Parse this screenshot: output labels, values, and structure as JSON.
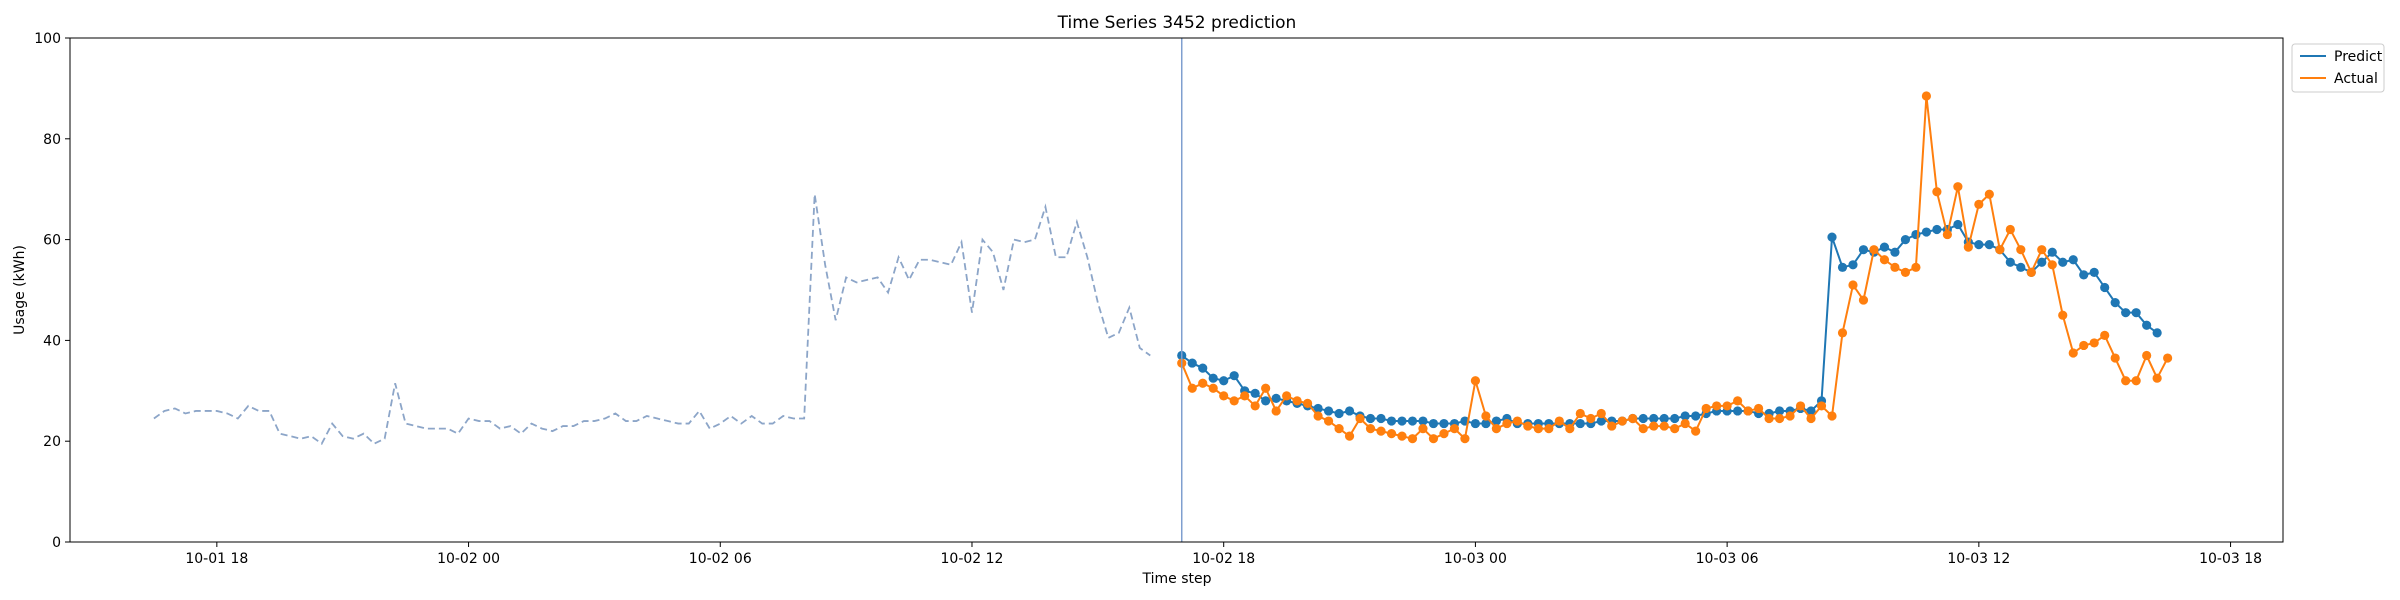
{
  "chart_data": {
    "type": "line",
    "title": "Time Series 3452 prediction",
    "xlabel": "Time step",
    "ylabel": "Usage (kWh)",
    "xlim": [
      "10-01 14:30",
      "10-03 19:15"
    ],
    "ylim": [
      0,
      100
    ],
    "yticks": [
      0,
      20,
      40,
      60,
      80,
      100
    ],
    "xticks": [
      {
        "label": "10-01 18",
        "value": "10-01 18:00"
      },
      {
        "label": "10-02 00",
        "value": "10-02 00:00"
      },
      {
        "label": "10-02 06",
        "value": "10-02 06:00"
      },
      {
        "label": "10-02 12",
        "value": "10-02 12:00"
      },
      {
        "label": "10-02 18",
        "value": "10-02 18:00"
      },
      {
        "label": "10-03 00",
        "value": "10-03 00:00"
      },
      {
        "label": "10-03 06",
        "value": "10-03 06:00"
      },
      {
        "label": "10-03 12",
        "value": "10-03 12:00"
      },
      {
        "label": "10-03 18",
        "value": "10-03 18:00"
      }
    ],
    "vline": {
      "x": "10-02 17:00",
      "color": "#7f9fcf"
    },
    "legend_position": "top-right",
    "grid": false,
    "series": [
      {
        "name": "Predict",
        "color": "#1f77b4",
        "style": "solid",
        "marker": true,
        "x": [
          "10-02 17:00",
          "10-02 17:15",
          "10-02 17:30",
          "10-02 17:45",
          "10-02 18:00",
          "10-02 18:15",
          "10-02 18:30",
          "10-02 18:45",
          "10-02 19:00",
          "10-02 19:15",
          "10-02 19:30",
          "10-02 19:45",
          "10-02 20:00",
          "10-02 20:15",
          "10-02 20:30",
          "10-02 20:45",
          "10-02 21:00",
          "10-02 21:15",
          "10-02 21:30",
          "10-02 21:45",
          "10-02 22:00",
          "10-02 22:15",
          "10-02 22:30",
          "10-02 22:45",
          "10-02 23:00",
          "10-02 23:15",
          "10-02 23:30",
          "10-02 23:45",
          "10-03 00:00",
          "10-03 00:15",
          "10-03 00:30",
          "10-03 00:45",
          "10-03 01:00",
          "10-03 01:15",
          "10-03 01:30",
          "10-03 01:45",
          "10-03 02:00",
          "10-03 02:15",
          "10-03 02:30",
          "10-03 02:45",
          "10-03 03:00",
          "10-03 03:15",
          "10-03 03:30",
          "10-03 03:45",
          "10-03 04:00",
          "10-03 04:15",
          "10-03 04:30",
          "10-03 04:45",
          "10-03 05:00",
          "10-03 05:15",
          "10-03 05:30",
          "10-03 05:45",
          "10-03 06:00",
          "10-03 06:15",
          "10-03 06:30",
          "10-03 06:45",
          "10-03 07:00",
          "10-03 07:15",
          "10-03 07:30",
          "10-03 07:45",
          "10-03 08:00",
          "10-03 08:15",
          "10-03 08:30",
          "10-03 08:45",
          "10-03 09:00",
          "10-03 09:15",
          "10-03 09:30",
          "10-03 09:45",
          "10-03 10:00",
          "10-03 10:15",
          "10-03 10:30",
          "10-03 10:45",
          "10-03 11:00",
          "10-03 11:15",
          "10-03 11:30",
          "10-03 11:45",
          "10-03 12:00",
          "10-03 12:15",
          "10-03 12:30",
          "10-03 12:45",
          "10-03 13:00",
          "10-03 13:15",
          "10-03 13:30",
          "10-03 13:45",
          "10-03 14:00",
          "10-03 14:15",
          "10-03 14:30",
          "10-03 14:45",
          "10-03 15:00",
          "10-03 15:15",
          "10-03 15:30",
          "10-03 15:45",
          "10-03 16:00",
          "10-03 16:15",
          "10-03 16:30",
          "10-03 16:45"
        ],
        "y": [
          37.0,
          35.5,
          34.5,
          32.5,
          32.0,
          33.0,
          30.0,
          29.5,
          28.0,
          28.5,
          28.0,
          27.5,
          27.0,
          26.5,
          26.0,
          25.5,
          26.0,
          25.0,
          24.5,
          24.5,
          24.0,
          24.0,
          24.0,
          24.0,
          23.5,
          23.5,
          23.5,
          24.0,
          23.5,
          23.5,
          24.0,
          24.5,
          23.5,
          23.5,
          23.5,
          23.5,
          23.5,
          23.5,
          23.5,
          23.5,
          24.0,
          24.0,
          24.0,
          24.5,
          24.5,
          24.5,
          24.5,
          24.5,
          25.0,
          25.0,
          25.5,
          26.0,
          26.0,
          26.0,
          26.0,
          25.5,
          25.5,
          26.0,
          26.0,
          26.5,
          26.0,
          28.0,
          60.5,
          54.5,
          55.0,
          58.0,
          57.5,
          58.5,
          57.5,
          60.0,
          61.0,
          61.5,
          62.0,
          62.0,
          63.0,
          59.5,
          59.0,
          59.0,
          58.0,
          55.5,
          54.5,
          53.5,
          55.5,
          57.5,
          55.5,
          56.0,
          53.0,
          53.5,
          50.5,
          47.5,
          45.5,
          45.5,
          43.0,
          41.5,
          null,
          null
        ]
      },
      {
        "name": "Actual",
        "color": "#ff7f0e",
        "style": "solid",
        "marker": true,
        "x": [
          "10-02 17:00",
          "10-02 17:15",
          "10-02 17:30",
          "10-02 17:45",
          "10-02 18:00",
          "10-02 18:15",
          "10-02 18:30",
          "10-02 18:45",
          "10-02 19:00",
          "10-02 19:15",
          "10-02 19:30",
          "10-02 19:45",
          "10-02 20:00",
          "10-02 20:15",
          "10-02 20:30",
          "10-02 20:45",
          "10-02 21:00",
          "10-02 21:15",
          "10-02 21:30",
          "10-02 21:45",
          "10-02 22:00",
          "10-02 22:15",
          "10-02 22:30",
          "10-02 22:45",
          "10-02 23:00",
          "10-02 23:15",
          "10-02 23:30",
          "10-02 23:45",
          "10-03 00:00",
          "10-03 00:15",
          "10-03 00:30",
          "10-03 00:45",
          "10-03 01:00",
          "10-03 01:15",
          "10-03 01:30",
          "10-03 01:45",
          "10-03 02:00",
          "10-03 02:15",
          "10-03 02:30",
          "10-03 02:45",
          "10-03 03:00",
          "10-03 03:15",
          "10-03 03:30",
          "10-03 03:45",
          "10-03 04:00",
          "10-03 04:15",
          "10-03 04:30",
          "10-03 04:45",
          "10-03 05:00",
          "10-03 05:15",
          "10-03 05:30",
          "10-03 05:45",
          "10-03 06:00",
          "10-03 06:15",
          "10-03 06:30",
          "10-03 06:45",
          "10-03 07:00",
          "10-03 07:15",
          "10-03 07:30",
          "10-03 07:45",
          "10-03 08:00",
          "10-03 08:15",
          "10-03 08:30",
          "10-03 08:45",
          "10-03 09:00",
          "10-03 09:15",
          "10-03 09:30",
          "10-03 09:45",
          "10-03 10:00",
          "10-03 10:15",
          "10-03 10:30",
          "10-03 10:45",
          "10-03 11:00",
          "10-03 11:15",
          "10-03 11:30",
          "10-03 11:45",
          "10-03 12:00",
          "10-03 12:15",
          "10-03 12:30",
          "10-03 12:45",
          "10-03 13:00",
          "10-03 13:15",
          "10-03 13:30",
          "10-03 13:45",
          "10-03 14:00",
          "10-03 14:15",
          "10-03 14:30",
          "10-03 14:45",
          "10-03 15:00",
          "10-03 15:15",
          "10-03 15:30",
          "10-03 15:45",
          "10-03 16:00",
          "10-03 16:15",
          "10-03 16:30",
          "10-03 16:45"
        ],
        "y": [
          35.5,
          30.5,
          31.5,
          30.5,
          29.0,
          28.0,
          29.0,
          27.0,
          30.5,
          26.0,
          29.0,
          28.0,
          27.5,
          25.0,
          24.0,
          22.5,
          21.0,
          24.5,
          22.5,
          22.0,
          21.5,
          21.0,
          20.5,
          22.5,
          20.5,
          21.5,
          22.5,
          20.5,
          32.0,
          25.0,
          22.5,
          23.5,
          24.0,
          23.0,
          22.5,
          22.5,
          24.0,
          22.5,
          25.5,
          24.5,
          25.5,
          23.0,
          24.0,
          24.5,
          22.5,
          23.0,
          23.0,
          22.5,
          23.5,
          22.0,
          26.5,
          27.0,
          27.0,
          28.0,
          26.0,
          26.5,
          24.5,
          24.5,
          25.0,
          27.0,
          24.5,
          27.0,
          25.0,
          41.5,
          51.0,
          48.0,
          58.0,
          56.0,
          54.5,
          53.5,
          54.5,
          88.5,
          69.5,
          61.0,
          70.5,
          58.5,
          67.0,
          69.0,
          58.0,
          62.0,
          58.0,
          53.5,
          58.0,
          55.0,
          45.0,
          37.5,
          39.0,
          39.5,
          41.0,
          36.5,
          32.0,
          32.0,
          37.0,
          32.5,
          36.5,
          null
        ]
      },
      {
        "name": "",
        "color": "#8ca5c8",
        "style": "dashed",
        "marker": false,
        "x": [
          "10-01 16:30",
          "10-01 16:45",
          "10-01 17:00",
          "10-01 17:15",
          "10-01 17:30",
          "10-01 17:45",
          "10-01 18:00",
          "10-01 18:15",
          "10-01 18:30",
          "10-01 18:45",
          "10-01 19:00",
          "10-01 19:15",
          "10-01 19:30",
          "10-01 19:45",
          "10-01 20:00",
          "10-01 20:15",
          "10-01 20:30",
          "10-01 20:45",
          "10-01 21:00",
          "10-01 21:15",
          "10-01 21:30",
          "10-01 21:45",
          "10-01 22:00",
          "10-01 22:15",
          "10-01 22:30",
          "10-01 22:45",
          "10-01 23:00",
          "10-01 23:15",
          "10-01 23:30",
          "10-01 23:45",
          "10-02 00:00",
          "10-02 00:15",
          "10-02 00:30",
          "10-02 00:45",
          "10-02 01:00",
          "10-02 01:15",
          "10-02 01:30",
          "10-02 01:45",
          "10-02 02:00",
          "10-02 02:15",
          "10-02 02:30",
          "10-02 02:45",
          "10-02 03:00",
          "10-02 03:15",
          "10-02 03:30",
          "10-02 03:45",
          "10-02 04:00",
          "10-02 04:15",
          "10-02 04:30",
          "10-02 04:45",
          "10-02 05:00",
          "10-02 05:15",
          "10-02 05:30",
          "10-02 05:45",
          "10-02 06:00",
          "10-02 06:15",
          "10-02 06:30",
          "10-02 06:45",
          "10-02 07:00",
          "10-02 07:15",
          "10-02 07:30",
          "10-02 07:45",
          "10-02 08:00",
          "10-02 08:15",
          "10-02 08:30",
          "10-02 08:45",
          "10-02 09:00",
          "10-02 09:15",
          "10-02 09:30",
          "10-02 09:45",
          "10-02 10:00",
          "10-02 10:15",
          "10-02 10:30",
          "10-02 10:45",
          "10-02 11:00",
          "10-02 11:15",
          "10-02 11:30",
          "10-02 11:45",
          "10-02 12:00",
          "10-02 12:15",
          "10-02 12:30",
          "10-02 12:45",
          "10-02 13:00",
          "10-02 13:15",
          "10-02 13:30",
          "10-02 13:45",
          "10-02 14:00",
          "10-02 14:15",
          "10-02 14:30",
          "10-02 14:45",
          "10-02 15:00",
          "10-02 15:15",
          "10-02 15:30",
          "10-02 15:45",
          "10-02 16:00",
          "10-02 16:15",
          "10-02 16:30",
          "10-02 16:45",
          "10-02 17:00"
        ],
        "y": [
          24.5,
          26.0,
          26.5,
          25.5,
          26.0,
          26.0,
          26.0,
          25.5,
          24.5,
          27.0,
          26.0,
          26.0,
          21.5,
          21.0,
          20.5,
          21.0,
          19.5,
          23.5,
          21.0,
          20.5,
          21.5,
          19.5,
          20.5,
          31.5,
          23.5,
          23.0,
          22.5,
          22.5,
          22.5,
          21.5,
          24.5,
          24.0,
          24.0,
          22.5,
          23.0,
          21.5,
          23.5,
          22.5,
          22.0,
          23.0,
          23.0,
          24.0,
          24.0,
          24.5,
          25.5,
          24.0,
          24.0,
          25.0,
          24.5,
          24.0,
          23.5,
          23.5,
          26.0,
          22.5,
          23.5,
          25.0,
          23.5,
          25.0,
          23.5,
          23.5,
          25.0,
          24.5,
          24.5,
          69.0,
          55.0,
          44.0,
          52.5,
          51.5,
          52.0,
          52.5,
          49.5,
          56.5,
          52.0,
          56.0,
          56.0,
          55.5,
          55.0,
          59.5,
          45.5,
          60.0,
          57.5,
          50.0,
          60.0,
          59.5,
          60.0,
          66.5,
          56.5,
          56.5,
          63.5,
          56.5,
          47.5,
          40.5,
          41.5,
          46.5,
          38.5,
          37.0,
          null,
          null,
          null
        ]
      }
    ]
  }
}
